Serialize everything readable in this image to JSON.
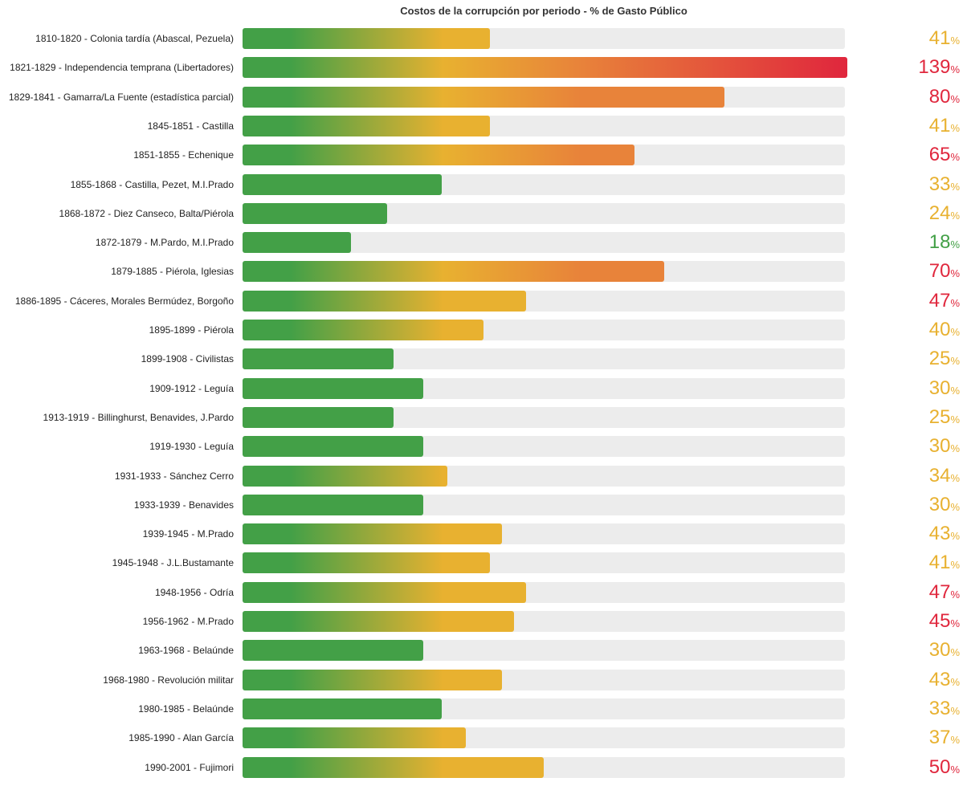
{
  "chart_data": {
    "type": "bar",
    "orientation": "horizontal",
    "title": "Costos de la corrupción por periodo - % de Gasto Público",
    "unit": "%",
    "xlim": [
      0,
      140
    ],
    "colors": {
      "green": "#43a047",
      "yellow": "#e8b130",
      "orange": "#e8833a",
      "red": "#e0273d",
      "track": "#ececec"
    },
    "categories": [
      "1810-1820 - Colonia tardía (Abascal, Pezuela)",
      "1821-1829 - Independencia temprana (Libertadores)",
      "1829-1841 - Gamarra/La Fuente (estadística parcial)",
      "1845-1851 - Castilla",
      "1851-1855 - Echenique",
      "1855-1868 - Castilla, Pezet, M.I.Prado",
      "1868-1872 - Diez Canseco, Balta/Piérola",
      "1872-1879 - M.Pardo, M.I.Prado",
      "1879-1885 - Piérola, Iglesias",
      "1886-1895 - Cáceres, Morales Bermúdez, Borgoño",
      "1895-1899 - Piérola",
      "1899-1908 - Civilistas",
      "1909-1912 - Leguía",
      "1913-1919 - Billinghurst, Benavides, J.Pardo",
      "1919-1930 - Leguía",
      "1931-1933 - Sánchez Cerro",
      "1933-1939 - Benavides",
      "1939-1945 - M.Prado",
      "1945-1948 - J.L.Bustamante",
      "1948-1956 - Odría",
      "1956-1962 - M.Prado",
      "1963-1968 - Belaúnde",
      "1968-1980 - Revolución militar",
      "1980-1985 - Belaúnde",
      "1985-1990 - Alan García",
      "1990-2001 - Fujimori"
    ],
    "values": [
      41,
      139,
      80,
      41,
      65,
      33,
      24,
      18,
      70,
      47,
      40,
      25,
      30,
      25,
      30,
      34,
      30,
      43,
      41,
      47,
      45,
      30,
      43,
      33,
      37,
      50
    ]
  }
}
